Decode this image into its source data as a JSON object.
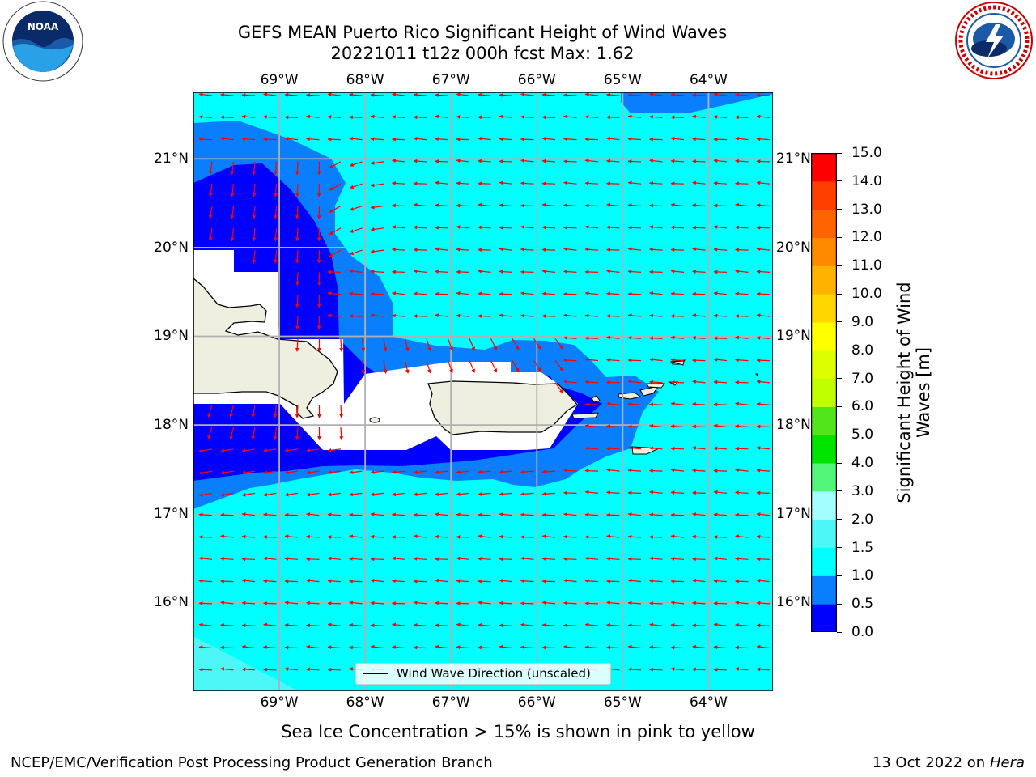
{
  "title": {
    "line1": "GEFS MEAN Puerto Rico Significant Height of Wind Waves",
    "line2": "20221011 t12z 000h fcst   Max: 1.62"
  },
  "logos": {
    "left": "noaa-logo",
    "right": "nws-logo"
  },
  "map": {
    "lon_labels": [
      "69°W",
      "68°W",
      "67°W",
      "66°W",
      "65°W",
      "64°W"
    ],
    "lat_labels": [
      "21°N",
      "20°N",
      "19°N",
      "18°N",
      "17°N",
      "16°N"
    ],
    "lon_range": [
      -70.0,
      -63.25
    ],
    "lat_range": [
      15.0,
      21.75
    ],
    "grid": true,
    "colors": {
      "land": "#efefdf",
      "masked": "#ffffff",
      "coast": "#000000",
      "arrow": "#ff0000",
      "grid": "#b0b0b0"
    },
    "legend_label": "Wind Wave Direction (unscaled)"
  },
  "colorbar": {
    "title_line1": "Significant Height of Wind",
    "title_line2": "Waves [m]",
    "ticks": [
      "0.0",
      "0.5",
      "1.0",
      "1.5",
      "2.0",
      "3.0",
      "4.0",
      "5.0",
      "6.0",
      "7.0",
      "8.0",
      "9.0",
      "10.0",
      "11.0",
      "12.0",
      "13.0",
      "14.0",
      "15.0"
    ],
    "colors": [
      "#0000ff",
      "#0a7ffe",
      "#00ffff",
      "#4df7f7",
      "#a3ffff",
      "#52f779",
      "#00e500",
      "#52e519",
      "#bfff00",
      "#dbff00",
      "#ffff00",
      "#ffd700",
      "#ffb300",
      "#ff8a00",
      "#ff6400",
      "#ff3f00",
      "#ff0000"
    ]
  },
  "subtitle": "Sea Ice Concentration > 15% is shown in pink to yellow",
  "footer": {
    "left": "NCEP/EMC/Verification Post Processing Product Generation Branch",
    "right_date": "13 Oct 2022 on ",
    "right_host": "Hera"
  }
}
